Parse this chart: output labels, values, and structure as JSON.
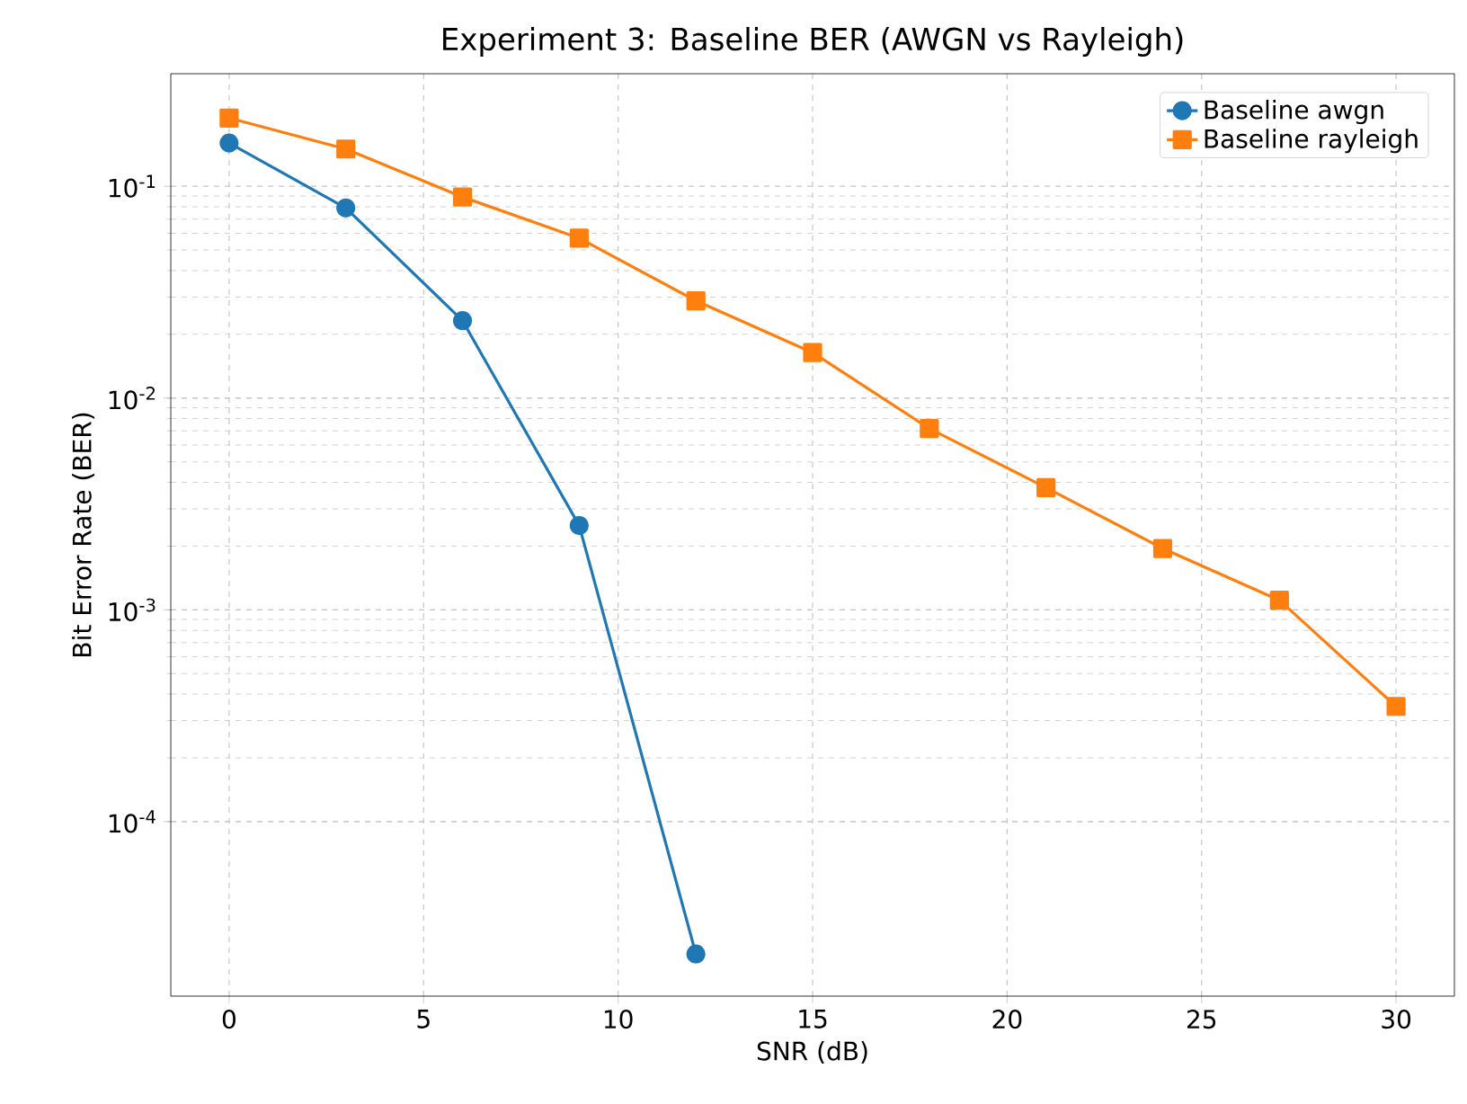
{
  "chart_data": {
    "type": "line",
    "title": "Experiment 3: Baseline BER (AWGN vs Rayleigh)",
    "xlabel": "SNR (dB)",
    "ylabel": "Bit Error Rate (BER)",
    "log": "y",
    "grid": true,
    "legend": "top right",
    "xlim": [
      -1.5,
      31.5
    ],
    "xticks": [
      0,
      5,
      10,
      15,
      20,
      25,
      30
    ],
    "ylim": [
      1.5e-05,
      0.34
    ],
    "yticks": [
      {
        "value": 0.0001,
        "label": "10$^{-4}$"
      },
      {
        "value": 0.001,
        "label": "10$^{-3}$"
      },
      {
        "value": 0.01,
        "label": "10$^{-2}$"
      },
      {
        "value": 0.1,
        "label": "10$^{-1}$"
      }
    ],
    "series": [
      {
        "name": "Baseline awgn",
        "color": "#1f77b4",
        "marker": "circle",
        "x": [
          0,
          3,
          6,
          9,
          12
        ],
        "values": [
          0.16,
          0.079,
          0.0232,
          0.0025,
          2.37e-05
        ]
      },
      {
        "name": "Baseline rayleigh",
        "color": "#ff7f0e",
        "marker": "square",
        "x": [
          0,
          3,
          6,
          9,
          12,
          15,
          18,
          21,
          24,
          27,
          30
        ],
        "values": [
          0.21,
          0.15,
          0.089,
          0.0569,
          0.0288,
          0.0164,
          0.00718,
          0.00378,
          0.00195,
          0.00111,
          0.00035
        ]
      }
    ]
  }
}
